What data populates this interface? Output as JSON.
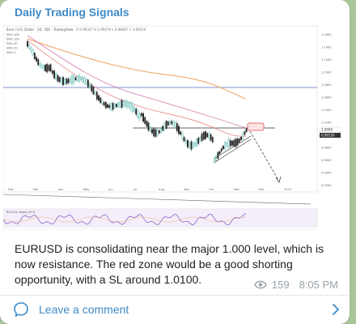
{
  "channel": {
    "title": "Daily Trading Signals"
  },
  "chart": {
    "header_text": "Euro / U.S. Dollar · 1D · IDC · TradingView",
    "ohlc_text": "O 0.99327  H 0.99479  L 0.98687  C 0.99150",
    "indicator_labels": [
      "EMA 200",
      "EMA 100",
      "EMA 50",
      "EMA 20",
      "EMA 9"
    ],
    "indicator_sub_label": "RSI (14, close) 45.5",
    "month_labels": [
      "Feb",
      "Mar",
      "Apr",
      "May",
      "Jun",
      "Jul",
      "Aug",
      "Sep",
      "Oct",
      "Nov",
      "Dec",
      "2023"
    ],
    "price_labels": [
      "1.1600",
      "1.1400",
      "1.1200",
      "1.1000",
      "1.0800",
      "1.0600",
      "1.0400",
      "1.0200",
      "1.0000",
      "0.9800",
      "0.9600",
      "0.9400",
      "0.9200"
    ],
    "last_price_tag": "0.99150",
    "level_tag": "1.0000",
    "colors": {
      "up": "#26a69a",
      "down": "#222222",
      "resistance": "#5a6ec8",
      "zone": "#d9534f",
      "ema_slow": "#f0b27a",
      "ema_mid": "#d27ab0",
      "rsi": "#7e57c2"
    }
  },
  "message": {
    "text": "EURUSD is consolidating near the major 1.000 level, which is now resistance. The red zone would be a good shorting opportunity, with a SL around 1.0100.",
    "views": "159",
    "time": "8:05 PM"
  },
  "footer": {
    "comment_label": "Leave a comment"
  }
}
